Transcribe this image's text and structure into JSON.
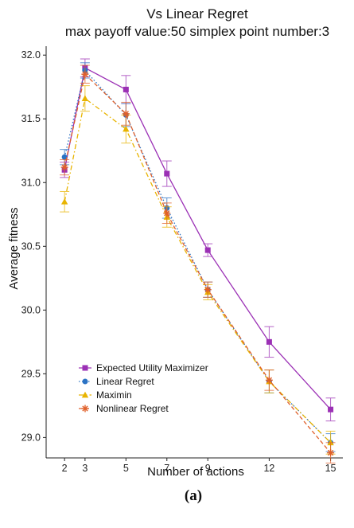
{
  "figure": {
    "title_line1": "Vs Linear Regret",
    "title_line2": "max payoff value:50 simplex point number:3",
    "caption": "(a)"
  },
  "chart_data": {
    "type": "line",
    "title": "Vs Linear Regret",
    "subtitle": "max payoff value:50 simplex point number:3",
    "xlabel": "Number of actions",
    "ylabel": "Average fitness",
    "x": [
      2,
      3,
      5,
      7,
      9,
      12,
      15
    ],
    "xticks": [
      2,
      3,
      5,
      7,
      9,
      12,
      15
    ],
    "xlim": [
      1.1,
      15.6
    ],
    "yticks": [
      29.0,
      29.5,
      30.0,
      30.5,
      31.0,
      31.5,
      32.0
    ],
    "ytick_labels": [
      "29.0",
      "29.5",
      "30.0",
      "30.5",
      "31.0",
      "31.5",
      "32.0"
    ],
    "ylim": [
      28.84,
      32.07
    ],
    "grid": false,
    "legend_position": "bottom-left",
    "series": [
      {
        "name": "Expected Utility Maximizer",
        "color": "#9b30b5",
        "marker": "square",
        "line": "solid",
        "values": [
          31.1,
          31.9,
          31.73,
          31.07,
          30.47,
          29.75,
          29.22
        ],
        "errors": [
          0.06,
          0.07,
          0.11,
          0.1,
          0.05,
          0.12,
          0.09
        ]
      },
      {
        "name": "Linear Regret",
        "color": "#2b73c4",
        "marker": "circle",
        "line": "dotted",
        "values": [
          31.2,
          31.88,
          31.53,
          30.8,
          30.16,
          29.44,
          28.96
        ],
        "errors": [
          0.06,
          0.06,
          0.09,
          0.08,
          0.06,
          0.09,
          0.07
        ]
      },
      {
        "name": "Maximin",
        "color": "#e8b400",
        "marker": "triangle",
        "line": "dashdot",
        "values": [
          30.85,
          31.66,
          31.42,
          30.73,
          30.14,
          29.44,
          28.96
        ],
        "errors": [
          0.08,
          0.1,
          0.11,
          0.08,
          0.06,
          0.09,
          0.09
        ]
      },
      {
        "name": "Nonlinear Regret",
        "color": "#e0602a",
        "marker": "asterisk",
        "line": "dashed",
        "values": [
          31.12,
          31.85,
          31.54,
          30.76,
          30.16,
          29.45,
          28.88
        ],
        "errors": [
          0.06,
          0.07,
          0.09,
          0.08,
          0.06,
          0.08,
          0.08
        ]
      }
    ]
  }
}
